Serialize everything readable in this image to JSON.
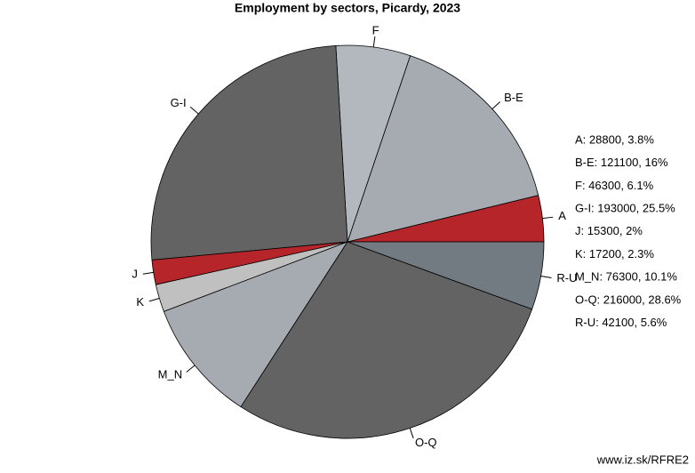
{
  "chart_data": {
    "type": "pie",
    "title": "Employment by sectors, Picardy, 2023",
    "categories": [
      "A",
      "B-E",
      "F",
      "G-I",
      "J",
      "K",
      "M_N",
      "O-Q",
      "R-U"
    ],
    "values": [
      28800,
      121100,
      46300,
      193000,
      15300,
      17200,
      76300,
      216000,
      42100
    ],
    "colors": [
      "#b5252a",
      "#a6abb2",
      "#b3b8bf",
      "#636363",
      "#b5252a",
      "#c0c0c0",
      "#a6abb2",
      "#636363",
      "#737b82"
    ],
    "legend_labels": [
      "A: 28800, 3.8%",
      "B-E: 121100, 16%",
      "F: 46300, 6.1%",
      "G-I: 193000, 25.5%",
      "J: 15300, 2%",
      "K: 17200, 2.3%",
      "M_N: 76300, 10.1%",
      "O-Q: 216000, 28.6%",
      "R-U: 42100, 5.6%"
    ],
    "source": "www.iz.sk/RFRE2"
  }
}
